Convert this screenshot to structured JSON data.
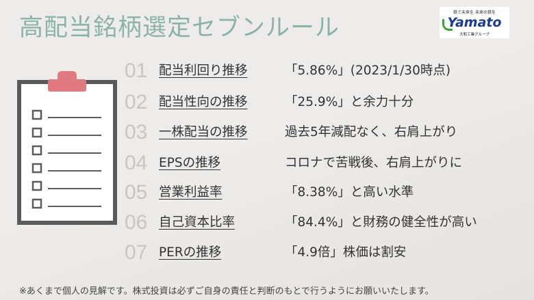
{
  "title": "高配当銘柄選定セブンルール",
  "logo": {
    "tagline": "鉄で未来を 未来の鉄を",
    "wordmark": "Yamato",
    "subtitle": "大和工業グループ",
    "colors": {
      "wordmark": "#1a3b94",
      "swoosh": "#3aa635"
    }
  },
  "clipboard_icon": "clipboard-checklist-icon",
  "rules": [
    {
      "num": "01",
      "label": "配当利回り推移",
      "value": "「5.86%」(2023/1/30時点)"
    },
    {
      "num": "02",
      "label": "配当性向の推移",
      "value": "「25.9%」と余力十分"
    },
    {
      "num": "03",
      "label": "一株配当の推移",
      "value": "過去5年減配なく、右肩上がり"
    },
    {
      "num": "04",
      "label": "EPSの推移",
      "value": "コロナで苦戦後、右肩上がりに"
    },
    {
      "num": "05",
      "label": "営業利益率",
      "value": "「8.38%」と高い水準"
    },
    {
      "num": "06",
      "label": "自己資本比率",
      "value": "「84.4%」と財務の健全性が高い"
    },
    {
      "num": "07",
      "label": "PERの推移",
      "value": "「4.9倍」株価は割安"
    }
  ],
  "disclaimer": "※あくまで個人の見解です。株式投資は必ずご自身の責任と判断のもとで行うようにお願いいたします。",
  "colors": {
    "title": "#8cb3a8",
    "accent_pin": "#e07a80",
    "numbers": "#c9c5c3"
  }
}
